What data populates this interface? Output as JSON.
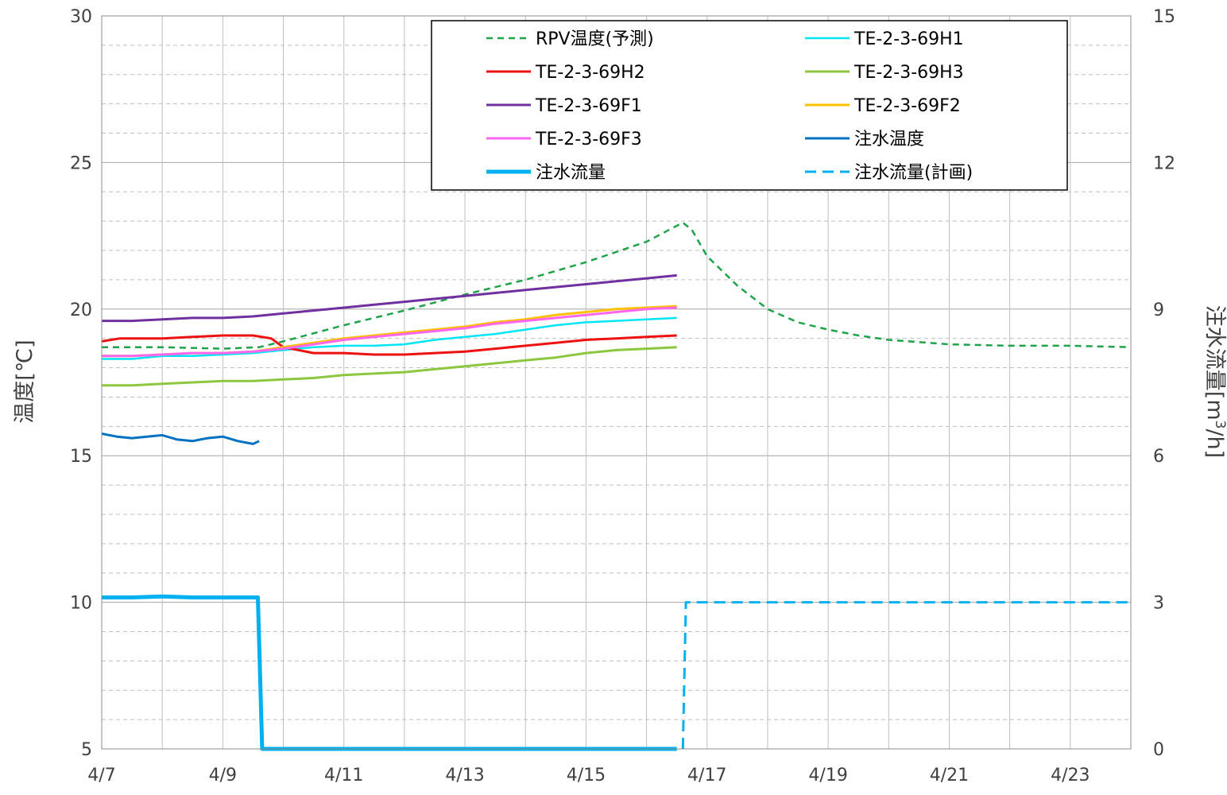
{
  "chart_data": {
    "type": "line",
    "title": "",
    "x_unit": "month/day (April)",
    "xlim": [
      7,
      24
    ],
    "x_ticks": [
      {
        "x": 7,
        "label": "4/7"
      },
      {
        "x": 9,
        "label": "4/9"
      },
      {
        "x": 11,
        "label": "4/11"
      },
      {
        "x": 13,
        "label": "4/13"
      },
      {
        "x": 15,
        "label": "4/15"
      },
      {
        "x": 17,
        "label": "4/17"
      },
      {
        "x": 19,
        "label": "4/19"
      },
      {
        "x": 21,
        "label": "4/21"
      },
      {
        "x": 23,
        "label": "4/23"
      }
    ],
    "grid": true,
    "y_left": {
      "label": "温度[℃]",
      "lim": [
        5,
        30
      ],
      "ticks": [
        {
          "v": 5,
          "label": "5"
        },
        {
          "v": 10,
          "label": "10"
        },
        {
          "v": 15,
          "label": "15"
        },
        {
          "v": 20,
          "label": "20"
        },
        {
          "v": 25,
          "label": "25"
        },
        {
          "v": 30,
          "label": "30"
        }
      ]
    },
    "y_right": {
      "label_main": "注水流量[m",
      "label_sup": "3",
      "label_tail": "/h]",
      "lim": [
        0,
        15
      ],
      "ticks": [
        {
          "v": 0,
          "label": "0"
        },
        {
          "v": 3,
          "label": "3"
        },
        {
          "v": 6,
          "label": "6"
        },
        {
          "v": 9,
          "label": "9"
        },
        {
          "v": 12,
          "label": "12"
        },
        {
          "v": 15,
          "label": "15"
        }
      ]
    },
    "legend_position": "top-right",
    "series": [
      {
        "name": "RPV温度(予測)",
        "color": "#1fa34a",
        "dash": "dash",
        "width": 2.5,
        "axis": "left",
        "x": [
          7,
          8,
          9,
          9.6,
          10,
          11,
          12,
          13,
          14,
          15,
          16,
          16.6,
          16.75,
          17,
          17.5,
          18,
          18.5,
          19,
          19.5,
          20,
          21,
          22,
          23,
          24
        ],
        "y": [
          18.7,
          18.7,
          18.65,
          18.7,
          18.9,
          19.45,
          19.95,
          20.5,
          21.0,
          21.6,
          22.3,
          22.95,
          22.7,
          21.8,
          20.8,
          20.0,
          19.55,
          19.3,
          19.1,
          18.95,
          18.8,
          18.75,
          18.75,
          18.7
        ]
      },
      {
        "name": "TE-2-3-69H1",
        "color": "#00e5f5",
        "dash": "solid",
        "width": 2.5,
        "axis": "left",
        "x": [
          7,
          7.5,
          8,
          8.5,
          9,
          9.5,
          10,
          10.5,
          11,
          11.5,
          12,
          12.5,
          13,
          13.5,
          14,
          14.5,
          15,
          15.5,
          16,
          16.5
        ],
        "y": [
          18.3,
          18.3,
          18.4,
          18.4,
          18.45,
          18.5,
          18.6,
          18.7,
          18.75,
          18.75,
          18.8,
          18.95,
          19.05,
          19.15,
          19.3,
          19.45,
          19.55,
          19.6,
          19.65,
          19.7
        ]
      },
      {
        "name": "TE-2-3-69H2",
        "color": "#ee1111",
        "dash": "solid",
        "width": 3,
        "axis": "left",
        "x": [
          7,
          7.3,
          8,
          8.5,
          9,
          9.5,
          9.8,
          10,
          10.5,
          11,
          11.5,
          12,
          12.5,
          13,
          13.5,
          14,
          14.5,
          15,
          15.5,
          16,
          16.5
        ],
        "y": [
          18.9,
          19.0,
          19.0,
          19.05,
          19.1,
          19.1,
          19.0,
          18.7,
          18.5,
          18.5,
          18.45,
          18.45,
          18.5,
          18.55,
          18.65,
          18.75,
          18.85,
          18.95,
          19.0,
          19.05,
          19.1
        ]
      },
      {
        "name": "TE-2-3-69H3",
        "color": "#8dc63f",
        "dash": "solid",
        "width": 3,
        "axis": "left",
        "x": [
          7,
          7.5,
          8,
          8.5,
          9,
          9.5,
          10,
          10.5,
          11,
          11.5,
          12,
          12.5,
          13,
          13.5,
          14,
          14.5,
          15,
          15.5,
          16,
          16.5
        ],
        "y": [
          17.4,
          17.4,
          17.45,
          17.5,
          17.55,
          17.55,
          17.6,
          17.65,
          17.75,
          17.8,
          17.85,
          17.95,
          18.05,
          18.15,
          18.25,
          18.35,
          18.5,
          18.6,
          18.65,
          18.7
        ]
      },
      {
        "name": "TE-2-3-69F1",
        "color": "#7030a0",
        "dash": "solid",
        "width": 3,
        "axis": "left",
        "x": [
          7,
          7.5,
          8,
          8.5,
          9,
          9.5,
          10,
          10.5,
          11,
          11.5,
          12,
          12.5,
          13,
          13.5,
          14,
          14.5,
          15,
          15.5,
          16,
          16.5
        ],
        "y": [
          19.6,
          19.6,
          19.65,
          19.7,
          19.7,
          19.75,
          19.85,
          19.95,
          20.05,
          20.15,
          20.25,
          20.35,
          20.45,
          20.55,
          20.65,
          20.75,
          20.85,
          20.95,
          21.05,
          21.15
        ]
      },
      {
        "name": "TE-2-3-69F2",
        "color": "#ffc000",
        "dash": "solid",
        "width": 3,
        "axis": "left",
        "x": [
          7,
          7.5,
          8,
          8.5,
          9,
          9.5,
          10,
          10.5,
          11,
          11.5,
          12,
          12.5,
          13,
          13.5,
          14,
          14.5,
          15,
          15.5,
          16,
          16.5
        ],
        "y": [
          18.4,
          18.4,
          18.45,
          18.5,
          18.5,
          18.55,
          18.7,
          18.85,
          19.0,
          19.1,
          19.2,
          19.3,
          19.4,
          19.55,
          19.65,
          19.8,
          19.9,
          20.0,
          20.05,
          20.1
        ]
      },
      {
        "name": "TE-2-3-69F3",
        "color": "#ff66ee",
        "dash": "solid",
        "width": 3,
        "axis": "left",
        "x": [
          7,
          7.5,
          8,
          8.5,
          9,
          9.5,
          10,
          10.5,
          11,
          11.5,
          12,
          12.5,
          13,
          13.5,
          14,
          14.5,
          15,
          15.5,
          16,
          16.5
        ],
        "y": [
          18.4,
          18.4,
          18.45,
          18.5,
          18.5,
          18.55,
          18.65,
          18.8,
          18.95,
          19.05,
          19.15,
          19.25,
          19.35,
          19.5,
          19.6,
          19.7,
          19.8,
          19.9,
          20.0,
          20.05
        ]
      },
      {
        "name": "注水温度",
        "color": "#0070c0",
        "dash": "solid",
        "width": 3,
        "axis": "left",
        "x": [
          7,
          7.25,
          7.5,
          7.75,
          8,
          8.25,
          8.5,
          8.75,
          9,
          9.25,
          9.5,
          9.6
        ],
        "y": [
          15.75,
          15.65,
          15.6,
          15.65,
          15.7,
          15.55,
          15.5,
          15.6,
          15.65,
          15.5,
          15.4,
          15.5
        ]
      },
      {
        "name": "注水流量",
        "color": "#00b0f0",
        "dash": "solid",
        "width": 5,
        "axis": "right",
        "x": [
          7,
          7.5,
          8,
          8.5,
          9,
          9.5,
          9.58,
          9.65,
          10,
          12,
          14,
          16,
          16.5
        ],
        "y": [
          3.1,
          3.1,
          3.12,
          3.1,
          3.1,
          3.1,
          3.1,
          0,
          0,
          0,
          0,
          0,
          0
        ]
      },
      {
        "name": "注水流量(計画)",
        "color": "#00b0f0",
        "dash": "dash",
        "width": 3,
        "axis": "right",
        "x": [
          16.6,
          16.65,
          17,
          18,
          19,
          20,
          21,
          22,
          23,
          24
        ],
        "y": [
          0,
          3,
          3,
          3,
          3,
          3,
          3,
          3,
          3,
          3
        ]
      }
    ]
  }
}
